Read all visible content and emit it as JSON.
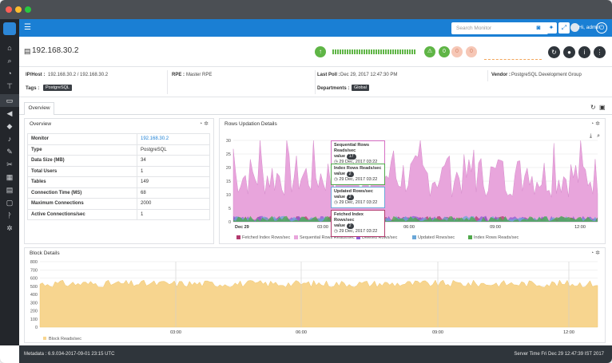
{
  "header": {
    "search_placeholder": "Search Monitor",
    "greeting": "Hi, admin"
  },
  "monitor": {
    "title": "192.168.30.2",
    "alert_warning": "0",
    "alert_major": "0",
    "alert_critical": "0"
  },
  "info": {
    "ip_host_label": "IP/Host :",
    "ip_host_value": "192.168.30.2 / 192.168.30.2",
    "rpe_label": "RPE :",
    "rpe_value": "Master RPE",
    "last_poll_label": "Last Poll :",
    "last_poll_value": "Dec 29, 2017 12:47:30 PM",
    "vendor_label": "Vendor :",
    "vendor_value": "PostgreSQL Development Group",
    "tags_label": "Tags :",
    "tags_value": "PostgreSQL",
    "departments_label": "Departments :",
    "departments_value": "Global"
  },
  "tabs": {
    "overview": "Overview"
  },
  "overview_panel": {
    "title": "Overview",
    "rows": [
      {
        "k": "Monitor",
        "v": "192.168.30.2"
      },
      {
        "k": "Type",
        "v": "PostgreSQL"
      },
      {
        "k": "Data Size (MB)",
        "v": "34"
      },
      {
        "k": "Total Users",
        "v": "1"
      },
      {
        "k": "Tables",
        "v": "149"
      },
      {
        "k": "Connection Time (MS)",
        "v": "68"
      },
      {
        "k": "Maximum Connections",
        "v": "2000"
      },
      {
        "k": "Active Connections/sec",
        "v": "1"
      }
    ]
  },
  "rows_panel": {
    "title": "Rows Updation Details",
    "tooltips": [
      {
        "title": "Sequential Rows Reads/sec",
        "value_label": "value",
        "value": "17",
        "time": "29 Dec, 2017 03:22",
        "color": "#d66fc4"
      },
      {
        "title": "Index Rows Reads/sec",
        "value_label": "value",
        "value": "2",
        "time": "29 Dec, 2017 03:22",
        "color": "#4fa84b"
      },
      {
        "title": "Updated Rows/sec",
        "value_label": "value",
        "value": "2",
        "time": "29 Dec, 2017 03:22",
        "color": "#6aa7d8"
      },
      {
        "title": "Fetched Index Rows/sec",
        "value_label": "value",
        "value": "2",
        "time": "29 Dec, 2017 03:22",
        "color": "#b23a6e"
      }
    ]
  },
  "block_panel": {
    "title": "Block Details",
    "legend_partial": "Block Reads/sec"
  },
  "footer": {
    "metadata": "Metadata : 6.9.034-2017-09-01 23:15 UTC",
    "server_time": "Server Time  Fri Dec 29 12:47:39 IST 2017"
  },
  "chart_data": [
    {
      "type": "area",
      "title": "Rows Updation Details",
      "categories": [
        "Dec 29",
        "03:00",
        "06:00",
        "09:00",
        "12:00"
      ],
      "ylim": [
        0,
        30
      ],
      "yticks": [
        0,
        5,
        10,
        15,
        20,
        25,
        30
      ],
      "series": [
        {
          "name": "Fetched Index Rows/sec",
          "color": "#b23a6e",
          "approx_level": 1
        },
        {
          "name": "Sequential Rows Reads/sec",
          "color": "#e8a5dc",
          "approx_level": 17
        },
        {
          "name": "Deleted Rows/sec",
          "color": "#8e5bd6",
          "approx_level": 0
        },
        {
          "name": "Updated Rows/sec",
          "color": "#6aa7d8",
          "approx_level": 1
        },
        {
          "name": "Index Rows Reads/sec",
          "color": "#4fa84b",
          "approx_level": 1
        }
      ],
      "grid": true,
      "legend": "bottom"
    },
    {
      "type": "area",
      "title": "Block Details",
      "categories": [
        "03:00",
        "06:00",
        "09:00",
        "12:00"
      ],
      "ylim": [
        0,
        800
      ],
      "yticks": [
        0,
        100,
        200,
        300,
        400,
        500,
        600,
        700,
        800
      ],
      "series": [
        {
          "name": "Block Reads/sec",
          "color": "#f7d58f",
          "approx_level": 530
        }
      ],
      "grid": true,
      "legend": "bottom"
    }
  ],
  "colors": {
    "nav_blue": "#1a7fd4",
    "sidebar": "#23262b",
    "status_up": "#5fb546",
    "warning": "#5fb546",
    "major": "#f6c7b6",
    "critical": "#f6c7b6"
  }
}
